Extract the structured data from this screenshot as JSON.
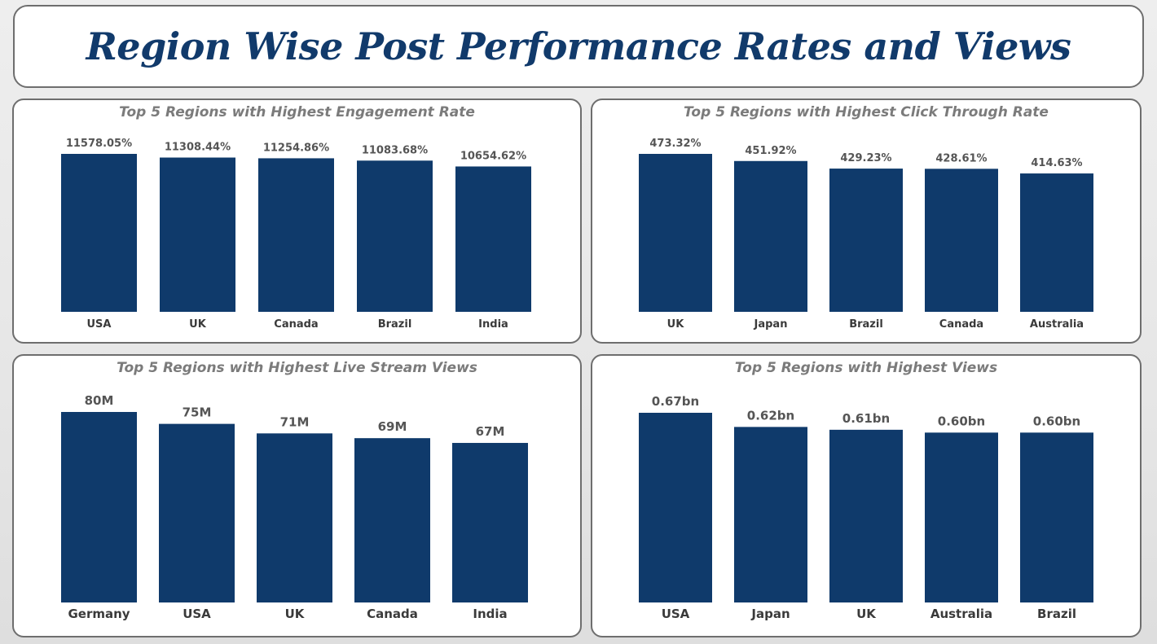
{
  "title": "Region Wise Post Performance Rates and Views",
  "colors": {
    "bar": "#0f3a6b",
    "title": "#113a6b",
    "chart_title": "#7b7b7b"
  },
  "chart_data": [
    {
      "type": "bar",
      "title": "Top 5 Regions with Highest Engagement Rate",
      "categories": [
        "USA",
        "UK",
        "Canada",
        "Brazil",
        "India"
      ],
      "values": [
        11578.05,
        11308.44,
        11254.86,
        11083.68,
        10654.62
      ],
      "labels": [
        "11578.05%",
        "11308.44%",
        "11254.86%",
        "11083.68%",
        "10654.62%"
      ],
      "ylim": [
        0,
        11578.05
      ]
    },
    {
      "type": "bar",
      "title": "Top 5 Regions with Highest Click Through Rate",
      "categories": [
        "UK",
        "Japan",
        "Brazil",
        "Canada",
        "Australia"
      ],
      "values": [
        473.32,
        451.92,
        429.23,
        428.61,
        414.63
      ],
      "labels": [
        "473.32%",
        "451.92%",
        "429.23%",
        "428.61%",
        "414.63%"
      ],
      "ylim": [
        0,
        473.32
      ]
    },
    {
      "type": "bar",
      "title": "Top 5 Regions with Highest Live Stream Views",
      "categories": [
        "Germany",
        "USA",
        "UK",
        "Canada",
        "India"
      ],
      "values": [
        80,
        75,
        71,
        69,
        67
      ],
      "labels": [
        "80M",
        "75M",
        "71M",
        "69M",
        "67M"
      ],
      "ylim": [
        0,
        80
      ]
    },
    {
      "type": "bar",
      "title": "Top 5 Regions with Highest Views",
      "categories": [
        "USA",
        "Japan",
        "UK",
        "Australia",
        "Brazil"
      ],
      "values": [
        0.67,
        0.62,
        0.61,
        0.6,
        0.6
      ],
      "labels": [
        "0.67bn",
        "0.62bn",
        "0.61bn",
        "0.60bn",
        "0.60bn"
      ],
      "ylim": [
        0,
        0.67
      ]
    }
  ]
}
